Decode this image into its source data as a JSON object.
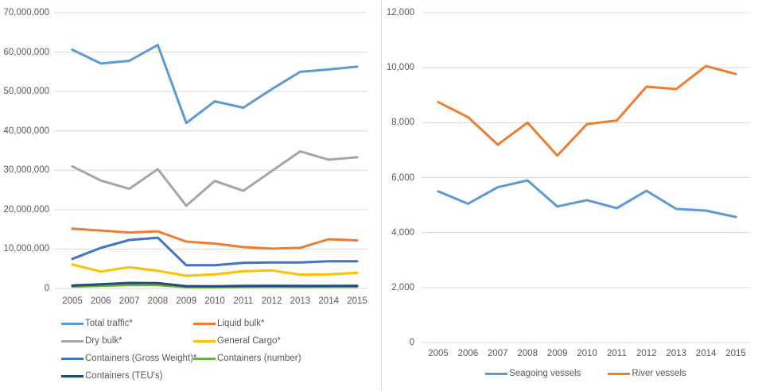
{
  "axis_text_color": "#595959",
  "gridline_color": "#D9D9D9",
  "divider_color": "#D9D9D9",
  "chart_data": [
    {
      "type": "line",
      "title": "",
      "x": [
        "2005",
        "2006",
        "2007",
        "2008",
        "2009",
        "2010",
        "2011",
        "2012",
        "2013",
        "2014",
        "2015"
      ],
      "ylim": [
        0,
        70000000
      ],
      "ytick_step": 10000000,
      "ytick_labels": [
        "0",
        "10,000,000",
        "20,000,000",
        "30,000,000",
        "40,000,000",
        "50,000,000",
        "60,000,000",
        "70,000,000"
      ],
      "grid": true,
      "legend_position": "bottom-left-two-columns",
      "series": [
        {
          "name": "Total traffic*",
          "color": "#5B9BD5",
          "values": [
            60600000,
            57100000,
            57800000,
            61800000,
            42000000,
            47500000,
            45900000,
            50600000,
            55000000,
            55600000,
            56300000
          ]
        },
        {
          "name": "Liquid bulk*",
          "color": "#ED7D31",
          "values": [
            15200000,
            14700000,
            14200000,
            14500000,
            11900000,
            11400000,
            10500000,
            10100000,
            10300000,
            12500000,
            12200000
          ]
        },
        {
          "name": "Dry bulk*",
          "color": "#A5A5A5",
          "values": [
            31000000,
            27400000,
            25300000,
            30300000,
            21000000,
            27300000,
            24800000,
            29800000,
            34800000,
            32700000,
            33300000
          ]
        },
        {
          "name": "General Cargo*",
          "color": "#FFC000",
          "values": [
            6100000,
            4300000,
            5400000,
            4500000,
            3200000,
            3600000,
            4400000,
            4600000,
            3500000,
            3600000,
            4000000
          ]
        },
        {
          "name": "Containers (Gross Weight)*",
          "color": "#4472C4",
          "values": [
            7500000,
            10300000,
            12300000,
            12900000,
            5900000,
            5900000,
            6500000,
            6600000,
            6600000,
            6900000,
            6900000
          ]
        },
        {
          "name": "Containers (number)",
          "color": "#70AD47",
          "values": [
            480000,
            640000,
            880000,
            860000,
            360000,
            350000,
            410000,
            430000,
            410000,
            420000,
            430000
          ]
        },
        {
          "name": "Containers (TEU's)",
          "color": "#1F4E79",
          "values": [
            770000,
            1040000,
            1410000,
            1380000,
            590000,
            560000,
            660000,
            680000,
            660000,
            670000,
            690000
          ]
        }
      ]
    },
    {
      "type": "line",
      "title": "",
      "x": [
        "2005",
        "2006",
        "2007",
        "2008",
        "2009",
        "2010",
        "2011",
        "2012",
        "2013",
        "2014",
        "2015"
      ],
      "ylim": [
        0,
        12000
      ],
      "ytick_step": 2000,
      "ytick_labels": [
        "0",
        "2,000",
        "4,000",
        "6,000",
        "8,000",
        "10,000",
        "12,000"
      ],
      "grid": true,
      "legend_position": "bottom-center",
      "series": [
        {
          "name": "Seagoing vessels",
          "color": "#5B9BD5",
          "values": [
            5500,
            5050,
            5650,
            5900,
            4950,
            5180,
            4890,
            5520,
            4860,
            4800,
            4570
          ]
        },
        {
          "name": "River vessels",
          "color": "#ED7D31",
          "values": [
            8750,
            8200,
            7200,
            8000,
            6800,
            7950,
            8080,
            9310,
            9220,
            10060,
            9770
          ]
        }
      ]
    }
  ]
}
